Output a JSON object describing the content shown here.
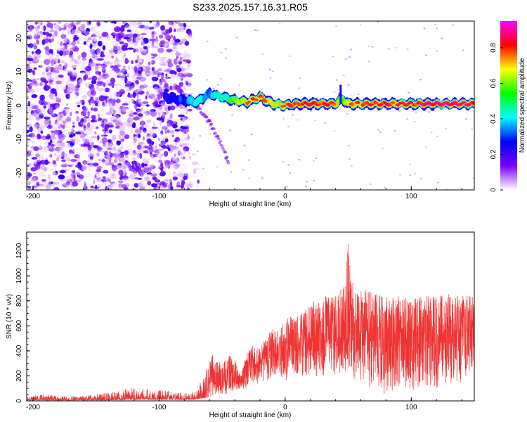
{
  "title": "S233.2025.157.16.31.R05",
  "chart_data": [
    {
      "type": "heatmap",
      "xlabel": "Height of straight line (km)",
      "ylabel": "Frequency (Hz)",
      "xlim": [
        -205,
        150
      ],
      "ylim": [
        -25,
        25
      ],
      "x_ticks": [
        -200,
        -100,
        0,
        100
      ],
      "y_ticks": [
        -20,
        -10,
        0,
        10,
        20
      ],
      "colorbar": {
        "label": "Normalized spectral amplitude",
        "range": [
          0,
          0.95
        ],
        "ticks": [
          0,
          0.2,
          0.4,
          0.6,
          0.8
        ],
        "colors": [
          "#ffffff",
          "#7b00ff",
          "#0000ff",
          "#00ffff",
          "#00ff00",
          "#ffff00",
          "#ff0000",
          "#ff00ff"
        ]
      },
      "noise_region_x": [
        -205,
        -75
      ],
      "ridge": {
        "x": [
          -95,
          -80,
          -70,
          -60,
          -50,
          -40,
          -30,
          -20,
          -10,
          0,
          10,
          20,
          30,
          40,
          45,
          50,
          60,
          70,
          80,
          90,
          100,
          110,
          120,
          130,
          140,
          150
        ],
        "frequency": [
          2.5,
          1.5,
          1.0,
          3.5,
          2.5,
          1.5,
          1.0,
          2.5,
          0.5,
          0.0,
          0.5,
          0.5,
          0.5,
          0.5,
          2.0,
          0.5,
          0.5,
          0.5,
          0.5,
          0.5,
          0.5,
          0.5,
          0.5,
          0.5,
          0.5,
          0.5
        ],
        "amplitude": [
          0.25,
          0.3,
          0.4,
          0.35,
          0.45,
          0.55,
          0.7,
          0.75,
          0.65,
          0.7,
          0.9,
          0.85,
          0.8,
          0.75,
          0.5,
          0.7,
          0.75,
          0.8,
          0.85,
          0.8,
          0.85,
          0.9,
          0.9,
          0.95,
          0.9,
          0.85
        ]
      },
      "branch": {
        "x": [
          -70,
          -60,
          -50,
          -45
        ],
        "frequency": [
          0,
          -5,
          -12,
          -17
        ]
      }
    },
    {
      "type": "line",
      "xlabel": "Height of straight line (km)",
      "ylabel": "SNR (10 * v/v)",
      "xlim": [
        -205,
        150
      ],
      "ylim": [
        0,
        1350
      ],
      "x_ticks": [
        -200,
        -100,
        0,
        100
      ],
      "y_ticks": [
        0,
        200,
        400,
        600,
        800,
        1000,
        1200
      ],
      "series": [
        {
          "color": "#ee3333",
          "x": [
            -205,
            -190,
            -180,
            -160,
            -140,
            -120,
            -100,
            -90,
            -80,
            -75,
            -70,
            -65,
            -60,
            -55,
            -50,
            -45,
            -40,
            -35,
            -30,
            -25,
            -20,
            -15,
            -10,
            -5,
            0,
            5,
            10,
            15,
            20,
            25,
            30,
            35,
            40,
            45,
            48,
            50,
            52,
            55,
            60,
            65,
            70,
            75,
            80,
            85,
            90,
            95,
            100,
            110,
            120,
            130,
            140,
            150
          ],
          "upper": [
            30,
            60,
            35,
            40,
            70,
            110,
            90,
            80,
            60,
            80,
            90,
            200,
            400,
            330,
            300,
            370,
            330,
            220,
            400,
            450,
            430,
            510,
            580,
            600,
            650,
            700,
            680,
            740,
            780,
            810,
            850,
            830,
            860,
            900,
            1000,
            1340,
            1050,
            860,
            880,
            900,
            850,
            870,
            830,
            830,
            860,
            830,
            820,
            850,
            840,
            860,
            850,
            840
          ],
          "lower": [
            5,
            5,
            5,
            5,
            5,
            10,
            10,
            10,
            10,
            10,
            15,
            20,
            30,
            40,
            40,
            60,
            80,
            90,
            100,
            120,
            140,
            160,
            180,
            200,
            160,
            180,
            200,
            200,
            220,
            180,
            200,
            250,
            200,
            220,
            230,
            240,
            220,
            160,
            140,
            100,
            120,
            40,
            60,
            80,
            100,
            60,
            60,
            120,
            100,
            140,
            150,
            260
          ]
        }
      ]
    }
  ]
}
